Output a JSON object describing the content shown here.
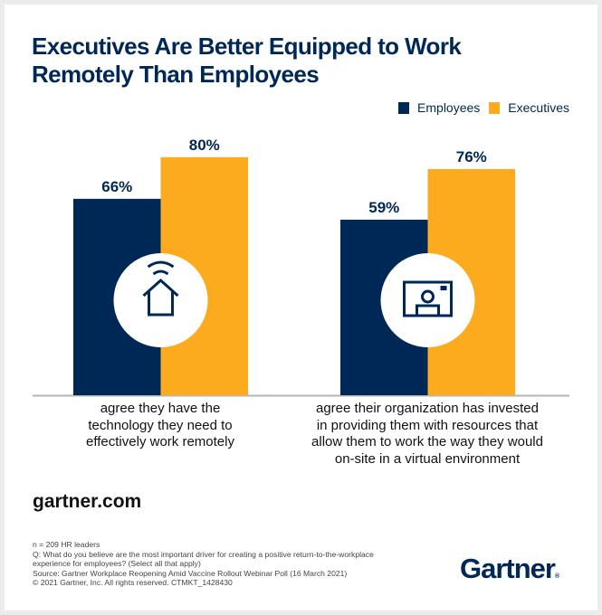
{
  "title_lines": [
    "Executives Are Better Equipped to Work",
    "Remotely Than Employees"
  ],
  "legend": [
    {
      "label": "Employees",
      "color": "#002856"
    },
    {
      "label": "Executives",
      "color": "#FDAB1E"
    }
  ],
  "chart_data": {
    "type": "bar",
    "title": "Executives Are Better Equipped to Work Remotely Than Employees",
    "xlabel": "",
    "ylabel": "",
    "ylim": [
      0,
      100
    ],
    "unit": "%",
    "grid": false,
    "legend_position": "top-right",
    "categories": [
      "agree they have the technology they need to effectively work remotely",
      "agree their organization has invested in providing them with resources that allow them to work the way they would on-site in a virtual environment"
    ],
    "category_icons": [
      "smart-home-icon",
      "video-call-icon"
    ],
    "series": [
      {
        "name": "Employees",
        "color": "#002856",
        "values": [
          66,
          59
        ]
      },
      {
        "name": "Executives",
        "color": "#FDAB1E",
        "values": [
          80,
          76
        ]
      }
    ],
    "data_labels": [
      [
        "66%",
        "59%"
      ],
      [
        "80%",
        "76%"
      ]
    ]
  },
  "category_label_lines": [
    [
      "agree they have the",
      "technology they need to",
      "effectively work remotely"
    ],
    [
      "agree their organization has invested",
      "in providing them with resources that",
      "allow them to work the way they would",
      "on-site in a virtual environment"
    ]
  ],
  "footer": {
    "site": "gartner.com",
    "notes": [
      "n = 209 HR leaders",
      "Q: What do you believe are the most important driver for creating a positive return-to-the-workplace",
      "experience for employees? (Select all that apply)",
      "Source: Gartner Workplace Reopening Amid Vaccine Rollout Webinar Poll (16 March 2021)",
      "© 2021 Gartner, Inc. All rights reserved. CTMKT_1428430"
    ],
    "logo": "Gartner",
    "logo_mark": "®"
  }
}
